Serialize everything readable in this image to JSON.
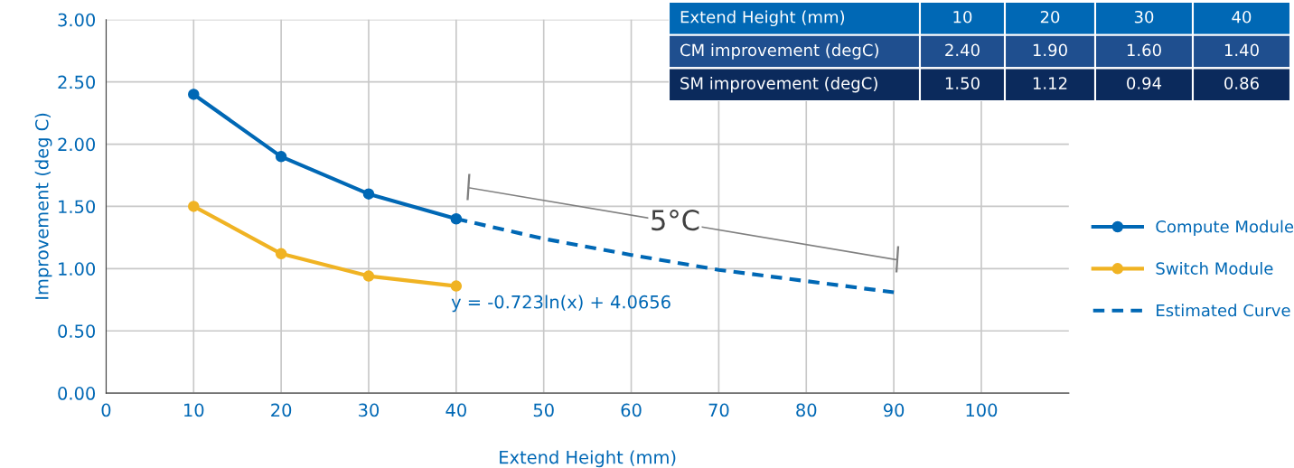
{
  "chart_data": {
    "type": "line",
    "xlabel": "Extend Height (mm)",
    "ylabel": "Improvement (deg C)",
    "xlim": [
      0,
      110
    ],
    "xticks": [
      0,
      10,
      20,
      30,
      40,
      50,
      60,
      70,
      80,
      90,
      100
    ],
    "ylim": [
      0,
      3
    ],
    "yticks": [
      {
        "value": 0,
        "label": "0.00"
      },
      {
        "value": 0.5,
        "label": "0.50"
      },
      {
        "value": 1,
        "label": "1.00"
      },
      {
        "value": 1.5,
        "label": "1.50"
      },
      {
        "value": 2,
        "label": "2.00"
      },
      {
        "value": 2.5,
        "label": "2.50"
      },
      {
        "value": 3,
        "label": "3.00"
      }
    ],
    "grid": true,
    "legend": "right",
    "marker": "circle",
    "line_style": "solid",
    "series": [
      {
        "name": "Compute Module",
        "color": "#0068b5",
        "x": [
          10,
          20,
          30,
          40
        ],
        "values": [
          2.4,
          1.9,
          1.6,
          1.4
        ]
      },
      {
        "name": "Switch Module",
        "color": "#f0b323",
        "x": [
          10,
          20,
          30,
          40
        ],
        "values": [
          1.5,
          1.12,
          0.94,
          0.86
        ]
      },
      {
        "name": "Estimated Curve",
        "color": "#0068b5",
        "x": [
          40,
          50,
          60,
          70,
          80,
          90
        ],
        "values": [
          1.4,
          1.24,
          1.11,
          0.99,
          0.9,
          0.81
        ],
        "marker": "none",
        "line_style": "dashed"
      }
    ],
    "annotations": [
      "y = -0.723ln(x) + 4.0656",
      "5°C",
      "Extend Height (mm)",
      "10",
      "20",
      "30",
      "40",
      "CM improvement (degC)",
      "2.40",
      "1.90",
      "1.60",
      "1.40",
      "SM improvement (degC)",
      "1.50",
      "1.12",
      "0.94",
      "0.86"
    ]
  }
}
